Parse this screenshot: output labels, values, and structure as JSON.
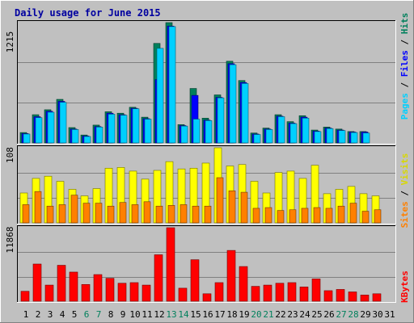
{
  "chart_data": [
    {
      "type": "bar",
      "title": "Daily usage for June 2015",
      "categories": [
        "1",
        "2",
        "3",
        "4",
        "5",
        "6",
        "7",
        "8",
        "9",
        "10",
        "11",
        "12",
        "13",
        "14",
        "15",
        "16",
        "17",
        "18",
        "19",
        "20",
        "21",
        "22",
        "23",
        "24",
        "25",
        "26",
        "27",
        "28",
        "29",
        "30",
        "31"
      ],
      "weekend_days": [
        "6",
        "7",
        "13",
        "14",
        "20",
        "21",
        "27",
        "28"
      ],
      "y_max_label": "1215",
      "series": [
        {
          "name": "Hits",
          "color": "#00805c",
          "values": [
            105,
            285,
            335,
            440,
            155,
            80,
            180,
            315,
            300,
            360,
            260,
            1005,
            1215,
            185,
            550,
            250,
            485,
            825,
            630,
            100,
            150,
            285,
            215,
            275,
            130,
            160,
            140,
            115,
            115,
            0,
            0
          ]
        },
        {
          "name": "Files",
          "color": "#0000ff",
          "values": [
            95,
            265,
            320,
            420,
            140,
            70,
            165,
            300,
            285,
            350,
            245,
            640,
            1180,
            175,
            480,
            230,
            460,
            800,
            610,
            90,
            140,
            270,
            200,
            260,
            120,
            150,
            130,
            110,
            110,
            0,
            0
          ]
        },
        {
          "name": "Pages",
          "color": "#00d0ff",
          "values": [
            90,
            255,
            310,
            410,
            135,
            65,
            160,
            290,
            280,
            345,
            240,
            955,
            1175,
            170,
            240,
            225,
            455,
            790,
            600,
            85,
            135,
            265,
            195,
            250,
            115,
            145,
            125,
            105,
            100,
            0,
            0
          ]
        }
      ],
      "legend": [
        "Pages",
        "Files",
        "Hits"
      ]
    },
    {
      "type": "bar",
      "y_max_label": "108",
      "series": [
        {
          "name": "Visits",
          "color": "#ffff00",
          "values": [
            41,
            61,
            64,
            57,
            46,
            37,
            47,
            75,
            76,
            71,
            60,
            72,
            84,
            74,
            75,
            82,
            103,
            78,
            80,
            57,
            41,
            69,
            71,
            61,
            79,
            40,
            46,
            50,
            40,
            37,
            0
          ]
        },
        {
          "name": "Sites",
          "color": "#ff8000",
          "values": [
            25,
            43,
            23,
            25,
            38,
            27,
            27,
            23,
            28,
            25,
            29,
            23,
            24,
            25,
            23,
            23,
            62,
            44,
            42,
            20,
            21,
            17,
            18,
            20,
            21,
            20,
            23,
            27,
            16,
            18,
            0
          ]
        }
      ],
      "legend": [
        "Sites",
        "Visits"
      ]
    },
    {
      "type": "bar",
      "y_max_label": "11868",
      "series": [
        {
          "name": "KBytes",
          "color": "#ff0000",
          "values": [
            1600,
            6000,
            2600,
            5800,
            4700,
            2700,
            4300,
            3700,
            2900,
            3000,
            2600,
            7500,
            11868,
            2100,
            6700,
            1200,
            3000,
            8200,
            5600,
            2400,
            2600,
            2900,
            3000,
            2300,
            3600,
            1700,
            1900,
            1500,
            1000,
            1200,
            0
          ]
        }
      ],
      "legend": [
        "KBytes"
      ]
    }
  ]
}
